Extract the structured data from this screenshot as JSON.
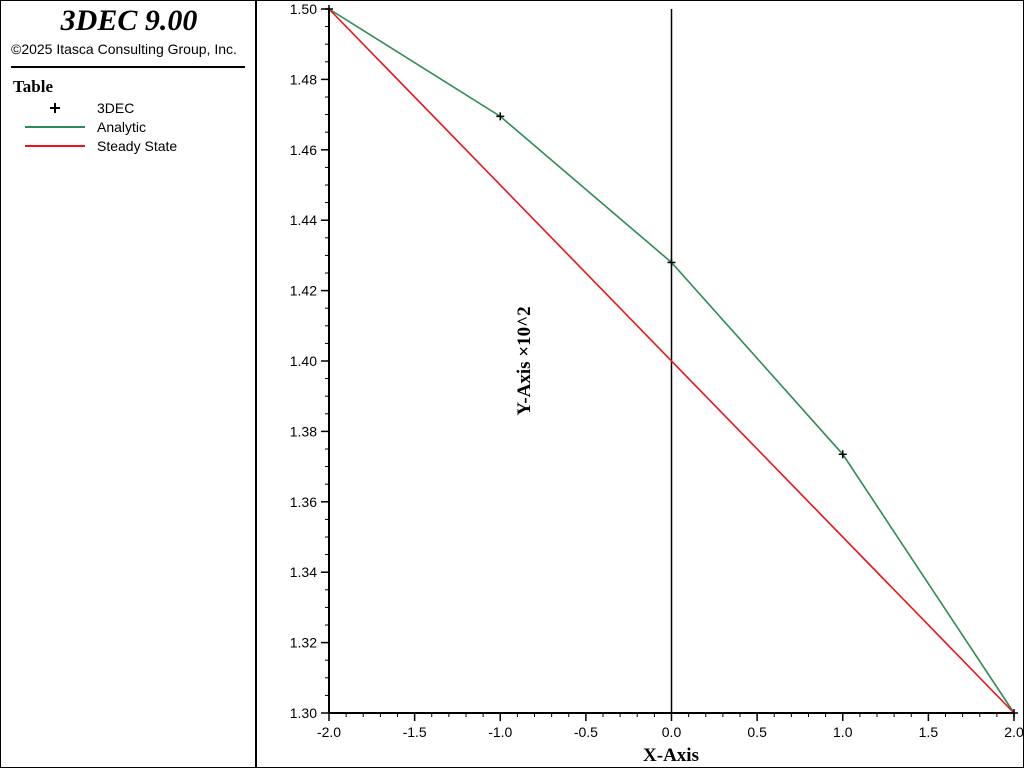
{
  "header": {
    "app_title": "3DEC 9.00",
    "copyright": "©2025 Itasca Consulting Group, Inc."
  },
  "legend": {
    "title": "Table",
    "items": [
      {
        "label": "3DEC",
        "symbol": "plus-marker",
        "color": "#000000"
      },
      {
        "label": "Analytic",
        "symbol": "line",
        "color": "#2e8b57"
      },
      {
        "label": "Steady State",
        "symbol": "line",
        "color": "#e8141a"
      }
    ]
  },
  "chart_data": {
    "type": "line",
    "xlabel": "X-Axis",
    "ylabel": "Y-Axis ×10^2",
    "xlim": [
      -2.0,
      2.0
    ],
    "ylim": [
      1.3,
      1.5
    ],
    "x_ticks": [
      "-2.0",
      "-1.5",
      "-1.0",
      "-0.5",
      "0.0",
      "0.5",
      "1.0",
      "1.5",
      "2.0"
    ],
    "y_ticks": [
      "1.30",
      "1.32",
      "1.34",
      "1.36",
      "1.38",
      "1.40",
      "1.42",
      "1.44",
      "1.46",
      "1.48",
      "1.50"
    ],
    "vertical_line_x": 0.0,
    "series": [
      {
        "name": "3DEC",
        "style": "markers",
        "color": "#000000",
        "x": [
          -2.0,
          -1.0,
          0.0,
          1.0,
          2.0
        ],
        "y": [
          1.5,
          1.4695,
          1.428,
          1.3735,
          1.3
        ]
      },
      {
        "name": "Analytic",
        "style": "line",
        "color": "#2e8b57",
        "x": [
          -2.0,
          -1.0,
          0.0,
          1.0,
          2.0
        ],
        "y": [
          1.5,
          1.4695,
          1.428,
          1.3735,
          1.3
        ]
      },
      {
        "name": "Steady State",
        "style": "line",
        "color": "#e8141a",
        "x": [
          -2.0,
          2.0
        ],
        "y": [
          1.5,
          1.3
        ]
      }
    ]
  }
}
